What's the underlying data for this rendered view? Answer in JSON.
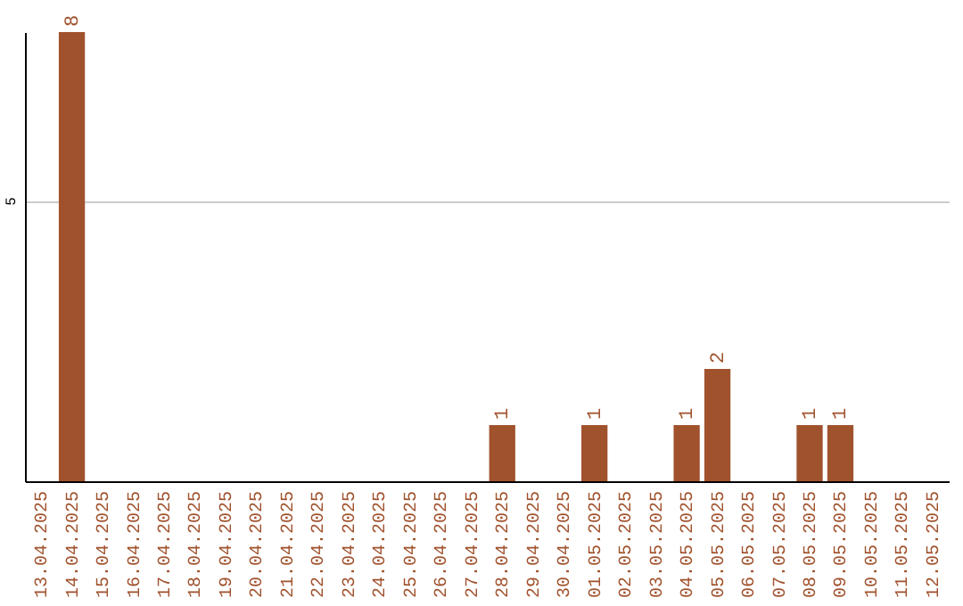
{
  "chart_data": {
    "type": "bar",
    "categories": [
      "13.04.2025",
      "14.04.2025",
      "15.04.2025",
      "16.04.2025",
      "17.04.2025",
      "18.04.2025",
      "19.04.2025",
      "20.04.2025",
      "21.04.2025",
      "22.04.2025",
      "23.04.2025",
      "24.04.2025",
      "25.04.2025",
      "26.04.2025",
      "27.04.2025",
      "28.04.2025",
      "29.04.2025",
      "30.04.2025",
      "01.05.2025",
      "02.05.2025",
      "03.05.2025",
      "04.05.2025",
      "05.05.2025",
      "06.05.2025",
      "07.05.2025",
      "08.05.2025",
      "09.05.2025",
      "10.05.2025",
      "11.05.2025",
      "12.05.2025"
    ],
    "values": [
      0,
      8,
      0,
      0,
      0,
      0,
      0,
      0,
      0,
      0,
      0,
      0,
      0,
      0,
      0,
      1,
      0,
      0,
      1,
      0,
      0,
      1,
      2,
      0,
      0,
      1,
      1,
      0,
      0,
      0
    ],
    "value_labels": [
      null,
      "8",
      null,
      null,
      null,
      null,
      null,
      null,
      null,
      null,
      null,
      null,
      null,
      null,
      null,
      "1",
      null,
      null,
      "1",
      null,
      null,
      "1",
      "2",
      null,
      null,
      "1",
      "1",
      null,
      null,
      null
    ],
    "color": "#a0522d",
    "ylim": [
      0,
      8
    ],
    "yticks": [
      5
    ],
    "grid": "y"
  }
}
